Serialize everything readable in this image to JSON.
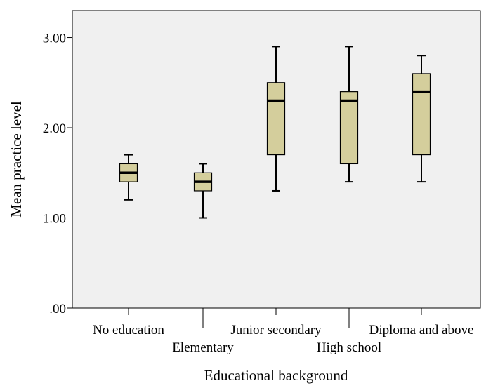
{
  "chart_data": {
    "type": "boxplot",
    "title": "",
    "xlabel": "Educational background",
    "ylabel": "Mean practice level",
    "ylim": [
      0,
      3.3
    ],
    "yticks": [
      0,
      1,
      2,
      3
    ],
    "ytick_labels": [
      ".00",
      "1.00",
      "2.00",
      "3.00"
    ],
    "grid": false,
    "legend": "none",
    "categories": [
      "No education",
      "Elementary",
      "Junior secondary",
      "High school",
      "Diploma and above"
    ],
    "boxes": [
      {
        "category": "No education",
        "min": 1.2,
        "q1": 1.4,
        "median": 1.5,
        "q3": 1.6,
        "max": 1.7
      },
      {
        "category": "Elementary",
        "min": 1.0,
        "q1": 1.3,
        "median": 1.4,
        "q3": 1.5,
        "max": 1.6
      },
      {
        "category": "Junior secondary",
        "min": 1.3,
        "q1": 1.7,
        "median": 2.3,
        "q3": 2.5,
        "max": 2.9
      },
      {
        "category": "High school",
        "min": 1.4,
        "q1": 1.6,
        "median": 2.3,
        "q3": 2.4,
        "max": 2.9
      },
      {
        "category": "Diploma and above",
        "min": 1.4,
        "q1": 1.7,
        "median": 2.4,
        "q3": 2.6,
        "max": 2.8
      }
    ],
    "colors": {
      "box_fill": "#d4ce9c",
      "plot_background": "#f0f0f0",
      "stroke": "#000000"
    }
  }
}
